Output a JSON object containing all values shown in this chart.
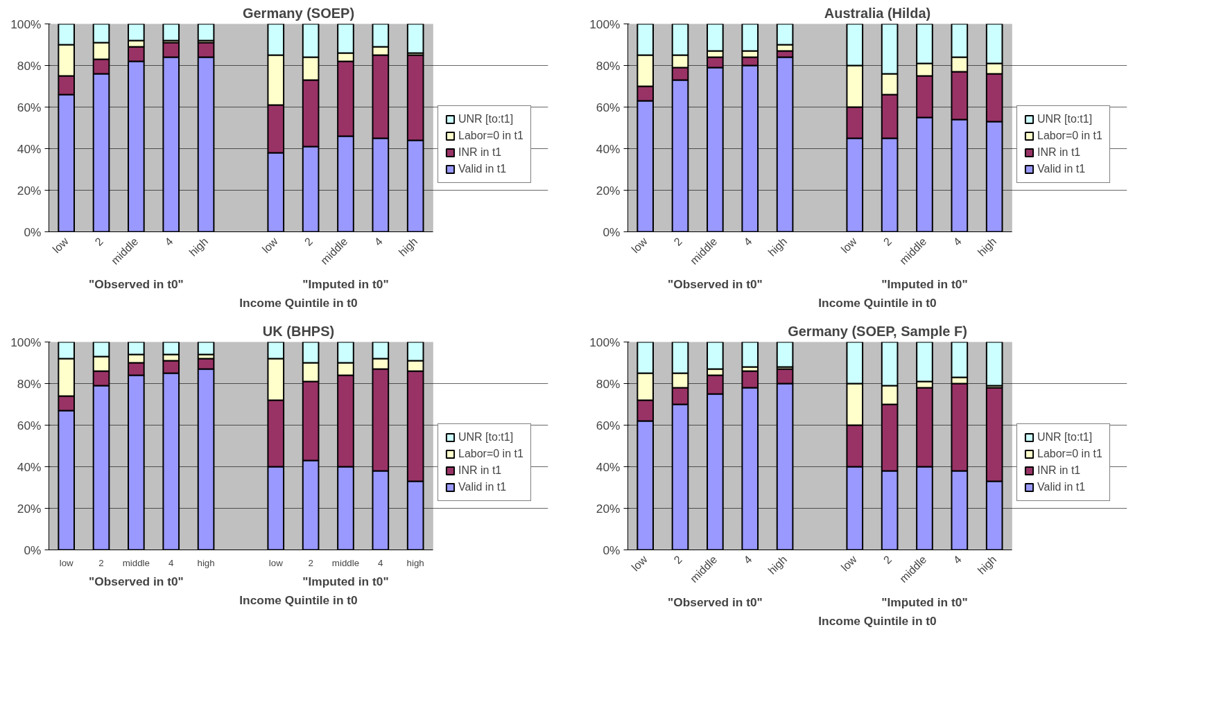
{
  "chart_data": [
    {
      "type": "bar",
      "title": "Germany (SOEP)",
      "xlabel": "Income Quintile in t0",
      "stacked": true,
      "categories": [
        "low",
        "2",
        "middle",
        "4",
        "high",
        null,
        "low",
        "2",
        "middle",
        "4",
        "high"
      ],
      "series": [
        {
          "name": "Valid in t1",
          "color": "#9999ff",
          "values": [
            66,
            76,
            82,
            84,
            84,
            null,
            38,
            41,
            46,
            45,
            44
          ]
        },
        {
          "name": "INR in t1",
          "color": "#993366",
          "values": [
            9,
            7,
            7,
            7,
            7,
            null,
            23,
            32,
            36,
            40,
            41
          ]
        },
        {
          "name": "Labor=0 in t1",
          "color": "#ffffcc",
          "values": [
            15,
            8,
            3,
            1,
            1,
            null,
            24,
            11,
            4,
            4,
            1
          ]
        },
        {
          "name": "UNR [to:t1]",
          "color": "#ccffff",
          "values": [
            10,
            9,
            8,
            8,
            8,
            null,
            15,
            16,
            14,
            11,
            14
          ]
        }
      ],
      "ylim": [
        0,
        100
      ],
      "yticks": [
        {
          "value": 0,
          "label": "0%"
        },
        {
          "value": 20,
          "label": "20%"
        },
        {
          "value": 40,
          "label": "40%"
        },
        {
          "value": 60,
          "label": "60%"
        },
        {
          "value": 80,
          "label": "80%"
        },
        {
          "value": 100,
          "label": "100%"
        }
      ],
      "grid": "y",
      "legend": "right",
      "annotations": [
        "\"Observed in t0\"",
        "\"Imputed in t0\""
      ]
    },
    {
      "type": "bar",
      "title": "Australia (Hilda)",
      "xlabel": "Income Quintile in t0",
      "stacked": true,
      "categories": [
        "low",
        "2",
        "middle",
        "4",
        "high",
        null,
        "low",
        "2",
        "middle",
        "4",
        "high"
      ],
      "series": [
        {
          "name": "Valid in t1",
          "color": "#9999ff",
          "values": [
            63,
            73,
            79,
            80,
            84,
            null,
            45,
            45,
            55,
            54,
            53
          ]
        },
        {
          "name": "INR in t1",
          "color": "#993366",
          "values": [
            7,
            6,
            5,
            4,
            3,
            null,
            15,
            21,
            20,
            23,
            23
          ]
        },
        {
          "name": "Labor=0 in t1",
          "color": "#ffffcc",
          "values": [
            15,
            6,
            3,
            3,
            3,
            null,
            20,
            10,
            6,
            7,
            5
          ]
        },
        {
          "name": "UNR [to:t1]",
          "color": "#ccffff",
          "values": [
            15,
            15,
            13,
            13,
            10,
            null,
            20,
            24,
            19,
            16,
            19
          ]
        }
      ],
      "ylim": [
        0,
        100
      ],
      "yticks": [
        {
          "value": 0,
          "label": "0%"
        },
        {
          "value": 20,
          "label": "20%"
        },
        {
          "value": 40,
          "label": "40%"
        },
        {
          "value": 60,
          "label": "60%"
        },
        {
          "value": 80,
          "label": "80%"
        },
        {
          "value": 100,
          "label": "100%"
        }
      ],
      "grid": "y",
      "legend": "right",
      "annotations": [
        "\"Observed in t0\"",
        "\"Imputed in t0\""
      ]
    },
    {
      "type": "bar",
      "title": "UK (BHPS)",
      "xlabel": "Income Quintile in t0",
      "stacked": true,
      "categories": [
        "low",
        "2",
        "middle",
        "4",
        "high",
        null,
        "low",
        "2",
        "middle",
        "4",
        "high"
      ],
      "series": [
        {
          "name": "Valid in t1",
          "color": "#9999ff",
          "values": [
            67,
            79,
            84,
            85,
            87,
            null,
            40,
            43,
            40,
            38,
            33
          ]
        },
        {
          "name": "INR in t1",
          "color": "#993366",
          "values": [
            7,
            7,
            6,
            6,
            5,
            null,
            32,
            38,
            44,
            49,
            53
          ]
        },
        {
          "name": "Labor=0 in t1",
          "color": "#ffffcc",
          "values": [
            18,
            7,
            4,
            3,
            2,
            null,
            20,
            9,
            6,
            5,
            5
          ]
        },
        {
          "name": "UNR [to:t1]",
          "color": "#ccffff",
          "values": [
            8,
            7,
            6,
            6,
            6,
            null,
            8,
            10,
            10,
            8,
            9
          ]
        }
      ],
      "ylim": [
        0,
        100
      ],
      "yticks": [
        {
          "value": 0,
          "label": "0%"
        },
        {
          "value": 20,
          "label": "20%"
        },
        {
          "value": 40,
          "label": "40%"
        },
        {
          "value": 60,
          "label": "60%"
        },
        {
          "value": 80,
          "label": "80%"
        },
        {
          "value": 100,
          "label": "100%"
        }
      ],
      "grid": "y",
      "legend": "right",
      "annotations": [
        "\"Observed in t0\"",
        "\"Imputed in t0\""
      ]
    },
    {
      "type": "bar",
      "title": "Germany (SOEP, Sample F)",
      "xlabel": "Income Quintile in t0",
      "stacked": true,
      "categories": [
        "low",
        "2",
        "middle",
        "4",
        "high",
        null,
        "low",
        "2",
        "middle",
        "4",
        "high"
      ],
      "series": [
        {
          "name": "Valid in t1",
          "color": "#9999ff",
          "values": [
            62,
            70,
            75,
            78,
            80,
            null,
            40,
            38,
            40,
            38,
            33
          ]
        },
        {
          "name": "INR in t1",
          "color": "#993366",
          "values": [
            10,
            8,
            9,
            8,
            7,
            null,
            20,
            32,
            38,
            42,
            45
          ]
        },
        {
          "name": "Labor=0 in t1",
          "color": "#ffffcc",
          "values": [
            13,
            7,
            3,
            2,
            1,
            null,
            20,
            9,
            3,
            3,
            1
          ]
        },
        {
          "name": "UNR [to:t1]",
          "color": "#ccffff",
          "values": [
            15,
            15,
            13,
            12,
            12,
            null,
            20,
            21,
            19,
            17,
            21
          ]
        }
      ],
      "ylim": [
        0,
        100
      ],
      "yticks": [
        {
          "value": 0,
          "label": "0%"
        },
        {
          "value": 20,
          "label": "20%"
        },
        {
          "value": 40,
          "label": "40%"
        },
        {
          "value": 60,
          "label": "60%"
        },
        {
          "value": 80,
          "label": "80%"
        },
        {
          "value": 100,
          "label": "100%"
        }
      ],
      "grid": "y",
      "legend": "right",
      "annotations": [
        "\"Observed in t0\"",
        "\"Imputed in t0\""
      ]
    }
  ]
}
